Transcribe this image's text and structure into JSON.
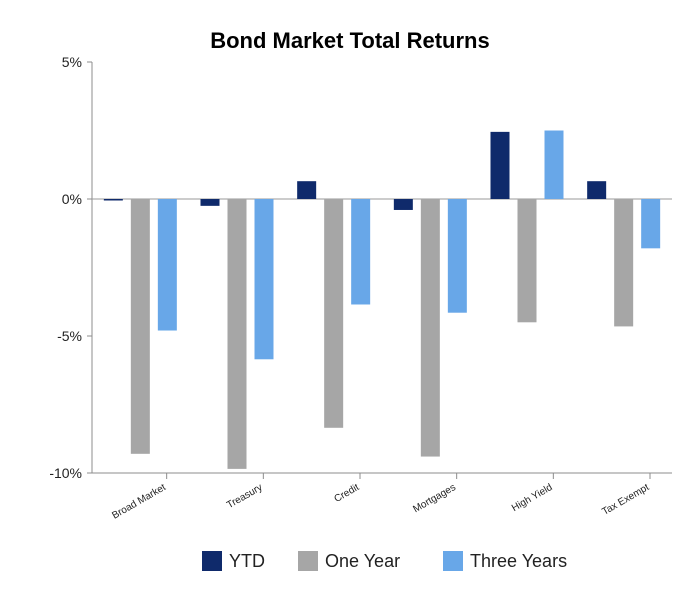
{
  "chart_data": {
    "type": "bar",
    "title": "Bond Market Total Returns",
    "xlabel": "",
    "ylabel": "",
    "ylim": [
      -10,
      5
    ],
    "yticks": [
      5,
      0,
      -5,
      -10
    ],
    "ytick_labels": [
      "5%",
      "0%",
      "-5%",
      "-10%"
    ],
    "grid": false,
    "legend_position": "bottom",
    "categories": [
      "Broad Market",
      "Treasury",
      "Credit",
      "Mortgages",
      "High Yield",
      "Tax Exempt"
    ],
    "series": [
      {
        "name": "YTD",
        "color": "#0f2a6b",
        "values": [
          -0.05,
          -0.25,
          0.65,
          -0.4,
          2.45,
          0.65
        ]
      },
      {
        "name": "One Year",
        "color": "#a6a6a6",
        "values": [
          -9.3,
          -9.85,
          -8.35,
          -9.4,
          -4.5,
          -4.65
        ]
      },
      {
        "name": "Three Years",
        "color": "#68a7e8",
        "values": [
          -4.8,
          -5.85,
          -3.85,
          -4.15,
          2.5,
          -1.8
        ]
      }
    ]
  }
}
